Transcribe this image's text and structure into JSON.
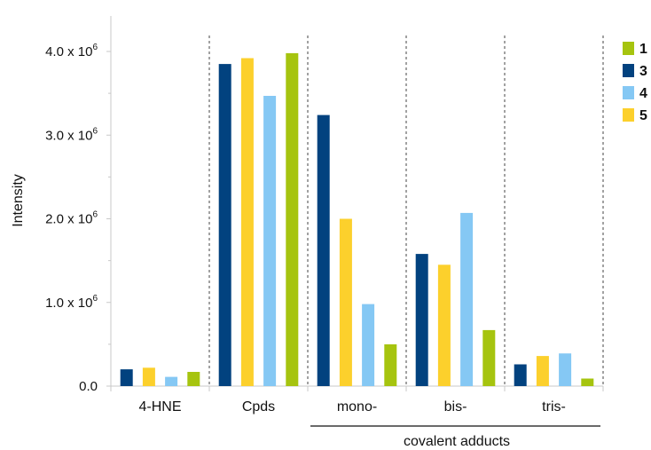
{
  "chart_data": {
    "type": "bar",
    "ylabel": "Intensity",
    "xlabel": "",
    "ylim": [
      0,
      4300000
    ],
    "y_ticks": [
      0,
      1000000,
      2000000,
      3000000,
      4000000
    ],
    "y_tick_labels": [
      {
        "base": "0.0",
        "exp": ""
      },
      {
        "base": "1.0 x 10",
        "exp": "6"
      },
      {
        "base": "2.0 x 10",
        "exp": "6"
      },
      {
        "base": "3.0 x 10",
        "exp": "6"
      },
      {
        "base": "4.0 x 10",
        "exp": "6"
      }
    ],
    "categories": [
      "4-HNE",
      "Cpds",
      "mono-",
      "bis-",
      "tris-"
    ],
    "group_label": "covalent adducts",
    "grid": false,
    "legend_position": "right",
    "groups": [
      {
        "category": "4-HNE",
        "bars": [
          {
            "series": "3",
            "value": 200000
          },
          {
            "series": "5",
            "value": 220000
          },
          {
            "series": "4",
            "value": 110000
          },
          {
            "series": "1",
            "value": 170000
          }
        ]
      },
      {
        "category": "Cpds",
        "bars": [
          {
            "series": "3",
            "value": 3850000
          },
          {
            "series": "5",
            "value": 3920000
          },
          {
            "series": "4",
            "value": 3470000
          },
          {
            "series": "1",
            "value": 3980000
          }
        ]
      },
      {
        "category": "mono-",
        "bars": [
          {
            "series": "3",
            "value": 3240000
          },
          {
            "series": "5",
            "value": 2000000
          },
          {
            "series": "4",
            "value": 980000
          },
          {
            "series": "1",
            "value": 500000
          }
        ]
      },
      {
        "category": "bis-",
        "bars": [
          {
            "series": "3",
            "value": 1580000
          },
          {
            "series": "5",
            "value": 1450000
          },
          {
            "series": "4",
            "value": 2070000
          },
          {
            "series": "1",
            "value": 670000
          }
        ]
      },
      {
        "category": "tris-",
        "bars": [
          {
            "series": "3",
            "value": 260000
          },
          {
            "series": "5",
            "value": 360000
          },
          {
            "series": "4",
            "value": 390000
          },
          {
            "series": "1",
            "value": 90000
          }
        ]
      }
    ],
    "legend": [
      {
        "name": "1",
        "color": "#a6c40f"
      },
      {
        "name": "3",
        "color": "#02427f"
      },
      {
        "name": "4",
        "color": "#85c8f4"
      },
      {
        "name": "5",
        "color": "#fcd02c"
      }
    ],
    "colors": {
      "1": "#a6c40f",
      "3": "#02427f",
      "4": "#85c8f4",
      "5": "#fcd02c"
    }
  }
}
